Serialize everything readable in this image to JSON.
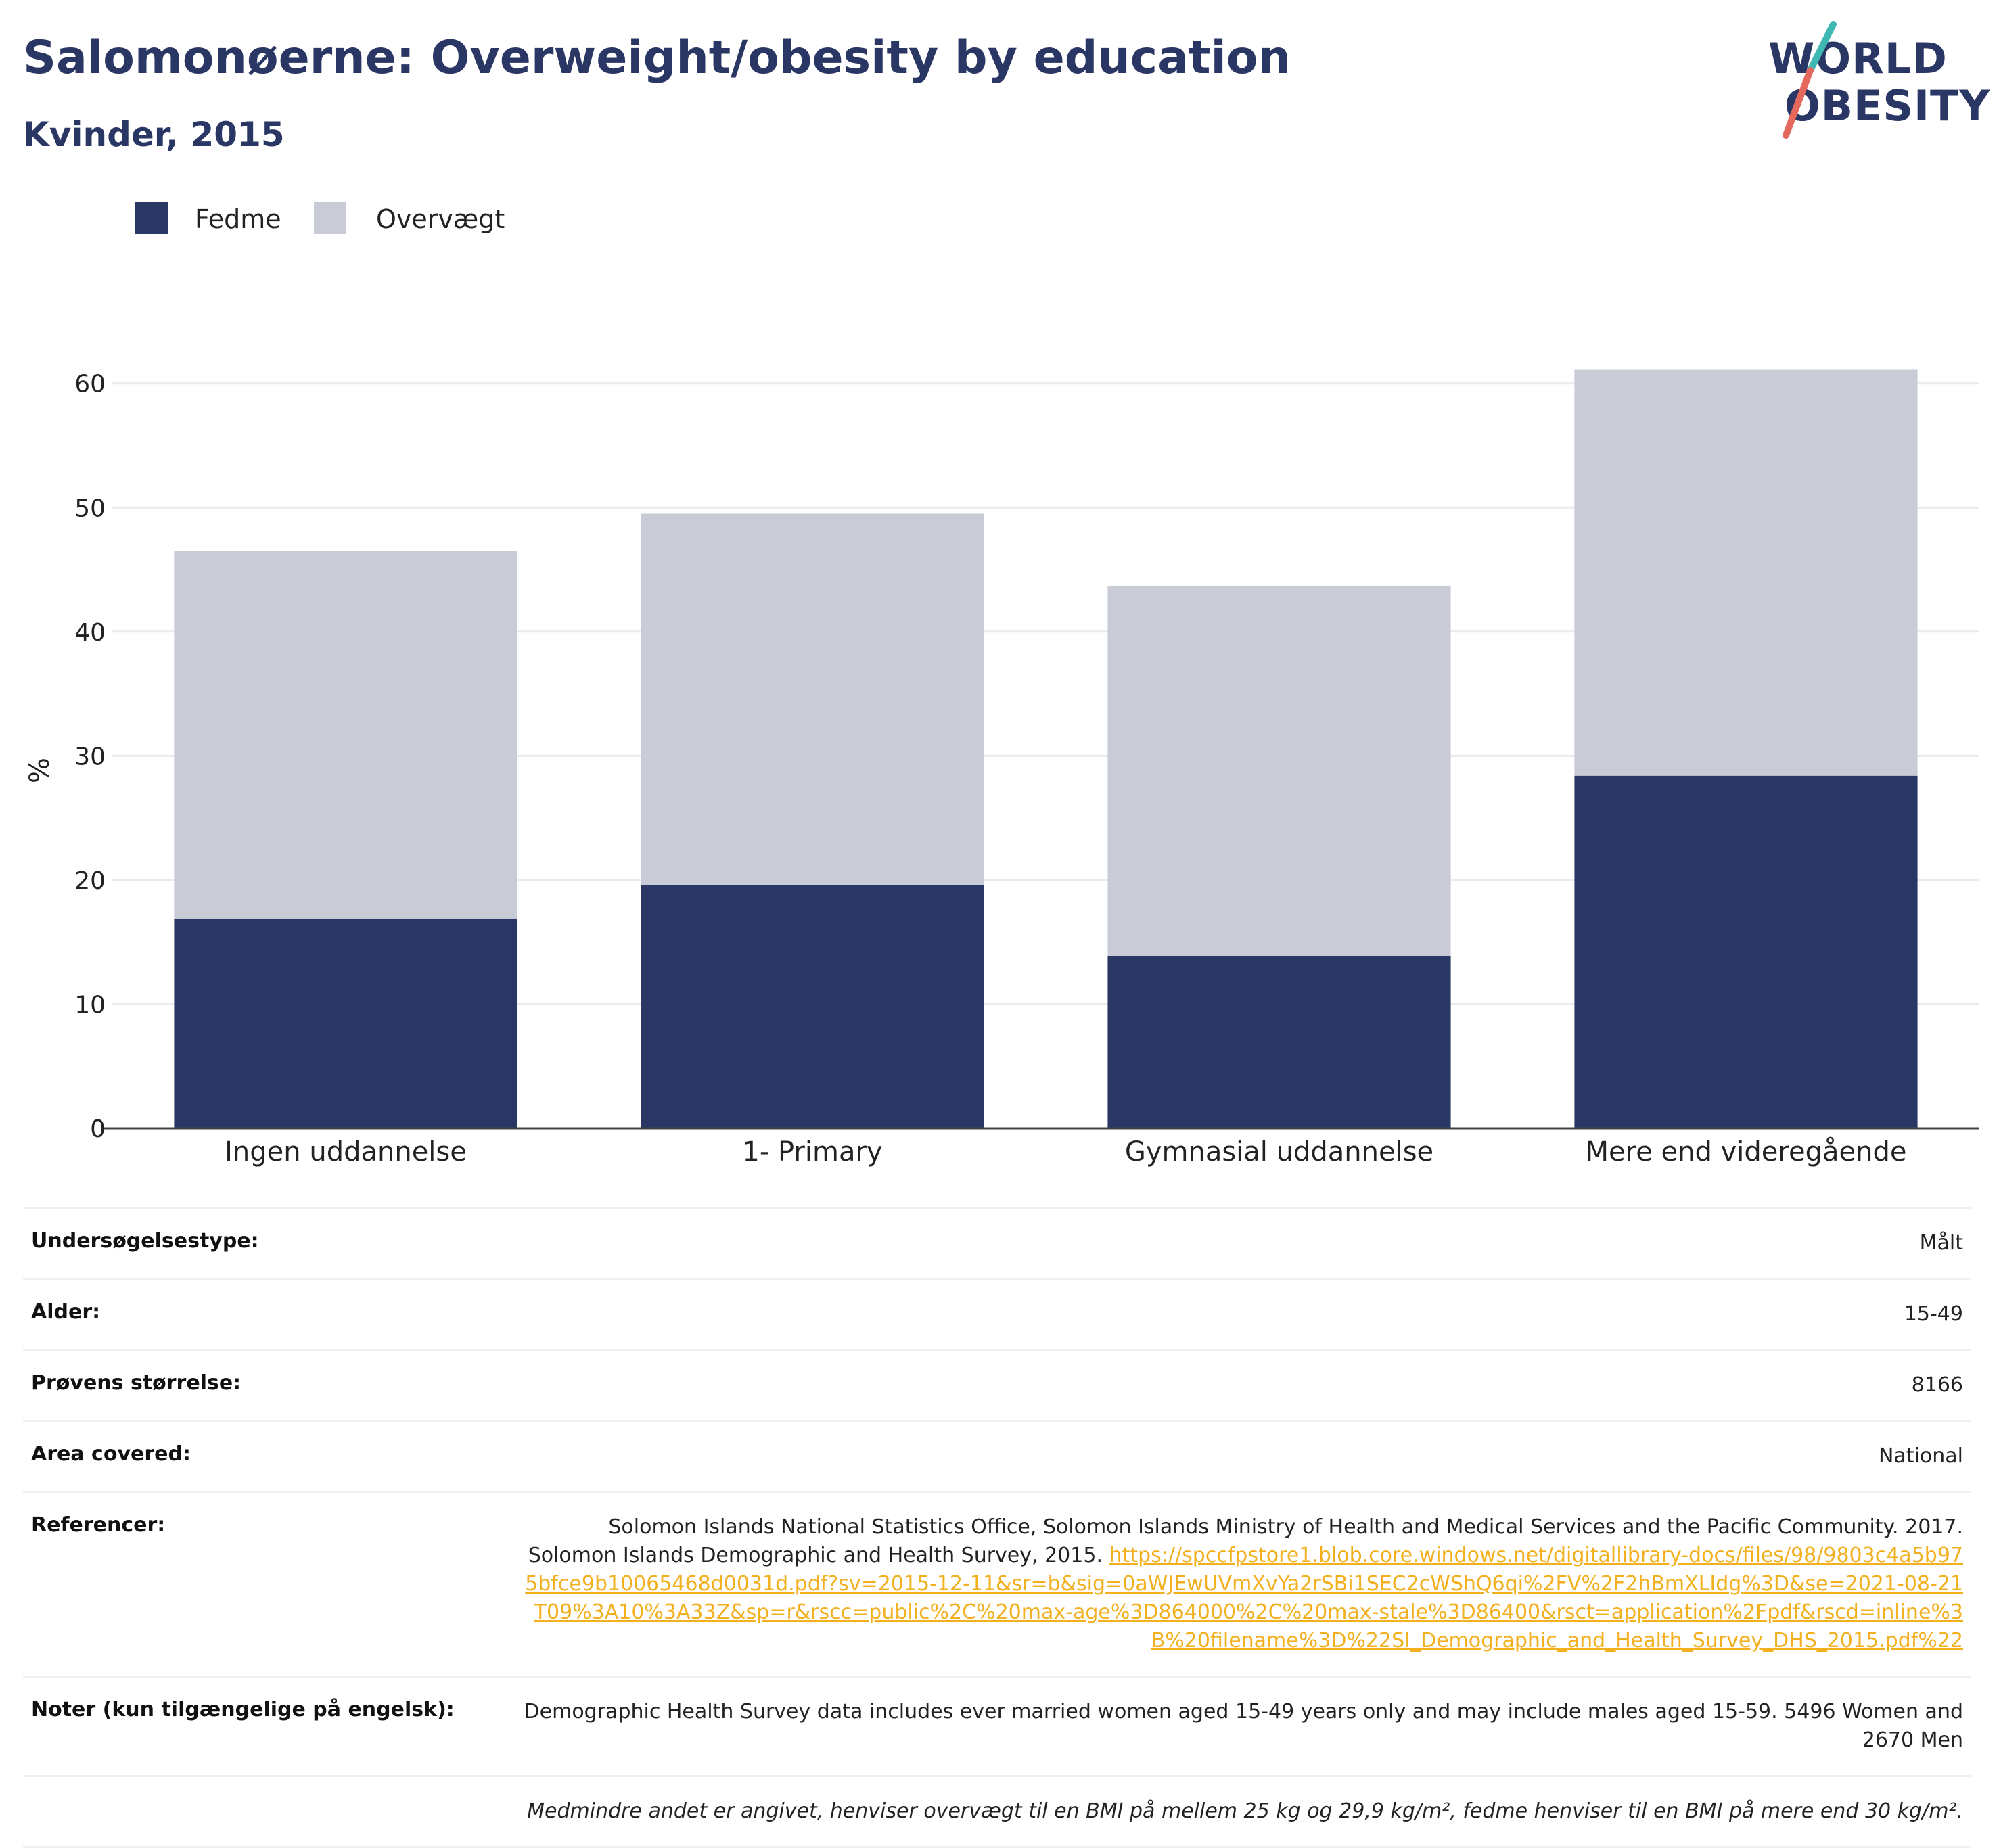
{
  "header": {
    "title": "Salomonøerne: Overweight/obesity by education",
    "subtitle": "Kvinder, 2015"
  },
  "logo": {
    "line1": "WORLD",
    "line2": "OBESITY",
    "accent_teal": "#3fb8b4",
    "accent_red": "#e5685c"
  },
  "colors": {
    "fedme": "#2a3663",
    "overvaegt": "#c9cbd6",
    "link": "#f2b01e"
  },
  "legend": [
    {
      "label": "Fedme",
      "color": "#2a3663"
    },
    {
      "label": "Overvægt",
      "color": "#c9cbd6"
    }
  ],
  "chart_data": {
    "type": "bar",
    "stacked": true,
    "categories": [
      "Ingen uddannelse",
      "1- Primary",
      "Gymnasial uddannelse",
      "Mere end videregående"
    ],
    "series": [
      {
        "name": "Fedme",
        "values": [
          16.9,
          19.6,
          13.9,
          28.4
        ]
      },
      {
        "name": "Overvægt",
        "values": [
          29.6,
          29.9,
          29.8,
          32.7
        ]
      }
    ],
    "totals": [
      46.5,
      49.5,
      43.7,
      61.1
    ],
    "ylabel": "%",
    "ylim": [
      0,
      62
    ],
    "yticks": [
      0,
      10,
      20,
      30,
      40,
      50,
      60
    ],
    "grid": true,
    "legend_position": "top-left"
  },
  "meta": {
    "rows": [
      {
        "label": "Undersøgelsestype:",
        "value": "Målt"
      },
      {
        "label": "Alder:",
        "value": "15-49"
      },
      {
        "label": "Prøvens størrelse:",
        "value": "8166"
      },
      {
        "label": "Area covered:",
        "value": "National"
      }
    ],
    "references": {
      "label": "Referencer:",
      "text": "Solomon Islands National Statistics Office, Solomon Islands Ministry of Health and Medical Services and the Pacific Community. 2017. Solomon Islands Demographic and Health Survey, 2015.",
      "link": "https://spccfpstore1.blob.core.windows.net/digitallibrary-docs/files/98/9803c4a5b975bfce9b10065468d0031d.pdf?sv=2015-12-11&sr=b&sig=0aWJEwUVmXvYa2rSBi1SEC2cWShQ6qi%2FV%2F2hBmXLIdg%3D&se=2021-08-21T09%3A10%3A33Z&sp=r&rscc=public%2C%20max-age%3D864000%2C%20max-stale%3D86400&rsct=application%2Fpdf&rscd=inline%3B%20filename%3D%22SI_Demographic_and_Health_Survey_DHS_2015.pdf%22"
    },
    "notes": {
      "label": "Noter (kun tilgængelige på engelsk):",
      "value": "Demographic Health Survey data includes ever married women aged 15-49 years only and may include males aged 15-59. 5496 Women and 2670 Men"
    },
    "footnote": "Medmindre andet er angivet, henviser overvægt til en BMI på mellem 25 kg og 29,9 kg/m², fedme henviser til en BMI på mere end 30 kg/m²."
  }
}
